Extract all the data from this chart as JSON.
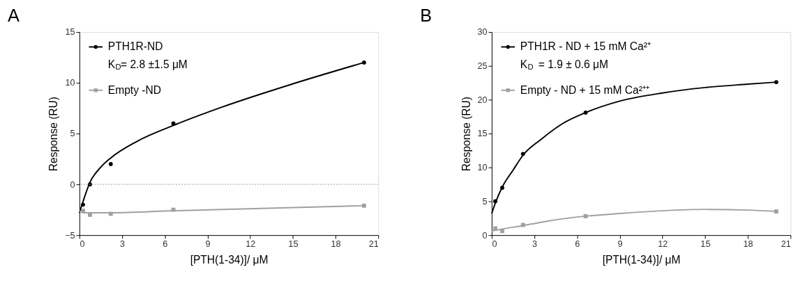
{
  "chart_data": [
    {
      "type": "scatter",
      "title": "A",
      "xlabel": "[PTH(1-34)]/ μM",
      "ylabel": "Response (RU)",
      "xlim": [
        0,
        21
      ],
      "xticks": [
        0,
        3,
        6,
        9,
        12,
        15,
        18,
        21
      ],
      "ylim": [
        -5,
        15
      ],
      "yticks": [
        -5,
        0,
        5,
        10,
        15
      ],
      "grid": false,
      "legend": "top left",
      "annotations": [
        "K$_{D}$= 2.8 ±1.5 μM"
      ],
      "ref_lines": [
        {
          "axis": "y",
          "value": 0,
          "color": "#999999",
          "line_style": "dotted"
        }
      ],
      "series": [
        {
          "name": "PTH1R-ND",
          "marker": "circle",
          "color": "#000000",
          "x": [
            0.25,
            0.74,
            2.2,
            6.6,
            20
          ],
          "values": [
            -2,
            0,
            2,
            6,
            12
          ]
        },
        {
          "type": "line",
          "color": "#000000",
          "x": [
            0,
            0.25,
            0.74,
            1.5,
            2.2,
            4,
            6.6,
            10,
            15,
            20
          ],
          "values": [
            -2.8,
            -1.7,
            0.2,
            1.7,
            2.6,
            4.2,
            5.8,
            7.6,
            9.9,
            12
          ]
        },
        {
          "name": "Empty -ND",
          "marker": "square",
          "color": "#a0a0a0",
          "x": [
            0.25,
            0.74,
            2.2,
            6.6,
            20
          ],
          "values": [
            -2.6,
            -3.0,
            -2.9,
            -2.5,
            -2.1
          ]
        },
        {
          "type": "line",
          "color": "#a0a0a0",
          "x": [
            0,
            0.3,
            2.2,
            6.6,
            20
          ],
          "values": [
            -2.6,
            -2.8,
            -2.8,
            -2.6,
            -2.1
          ]
        }
      ]
    },
    {
      "type": "scatter",
      "title": "B",
      "xlabel": "[PTH(1-34)]/ μM",
      "ylabel": "Response (RU)",
      "xlim": [
        0,
        21
      ],
      "xticks": [
        0,
        3,
        6,
        9,
        12,
        15,
        18,
        21
      ],
      "ylim": [
        0,
        30
      ],
      "yticks": [
        0,
        5,
        10,
        15,
        20,
        25,
        30
      ],
      "grid": false,
      "legend": "top left",
      "annotations": [
        "K$_{D}$ = 1.9 ± 0.6 μM"
      ],
      "series": [
        {
          "name": "PTH1R - ND + 15 mM Ca²⁺",
          "marker": "circle",
          "color": "#000000",
          "x": [
            0.25,
            0.74,
            2.2,
            6.6,
            20
          ],
          "values": [
            5,
            7,
            12,
            18.1,
            22.6
          ]
        },
        {
          "type": "line",
          "color": "#000000",
          "x": [
            0,
            0.25,
            0.74,
            1.5,
            2.2,
            3.5,
            5,
            6.6,
            9,
            12,
            15,
            18,
            20
          ],
          "values": [
            3.2,
            4.7,
            7.1,
            9.6,
            11.8,
            14.2,
            16.5,
            18.1,
            19.8,
            21,
            21.8,
            22.3,
            22.6
          ]
        },
        {
          "name": "Empty - ND + 15 mM Ca²⁺⁺",
          "marker": "square",
          "color": "#a0a0a0",
          "x": [
            0.25,
            0.74,
            2.2,
            6.6,
            20
          ],
          "values": [
            1.0,
            0.6,
            1.5,
            2.8,
            3.5
          ]
        },
        {
          "type": "line",
          "color": "#a0a0a0",
          "x": [
            0,
            0.74,
            2.2,
            4,
            6.6,
            9,
            12,
            15,
            18,
            20
          ],
          "values": [
            0.6,
            0.9,
            1.4,
            2.1,
            2.8,
            3.2,
            3.6,
            3.8,
            3.7,
            3.5
          ]
        }
      ]
    }
  ]
}
